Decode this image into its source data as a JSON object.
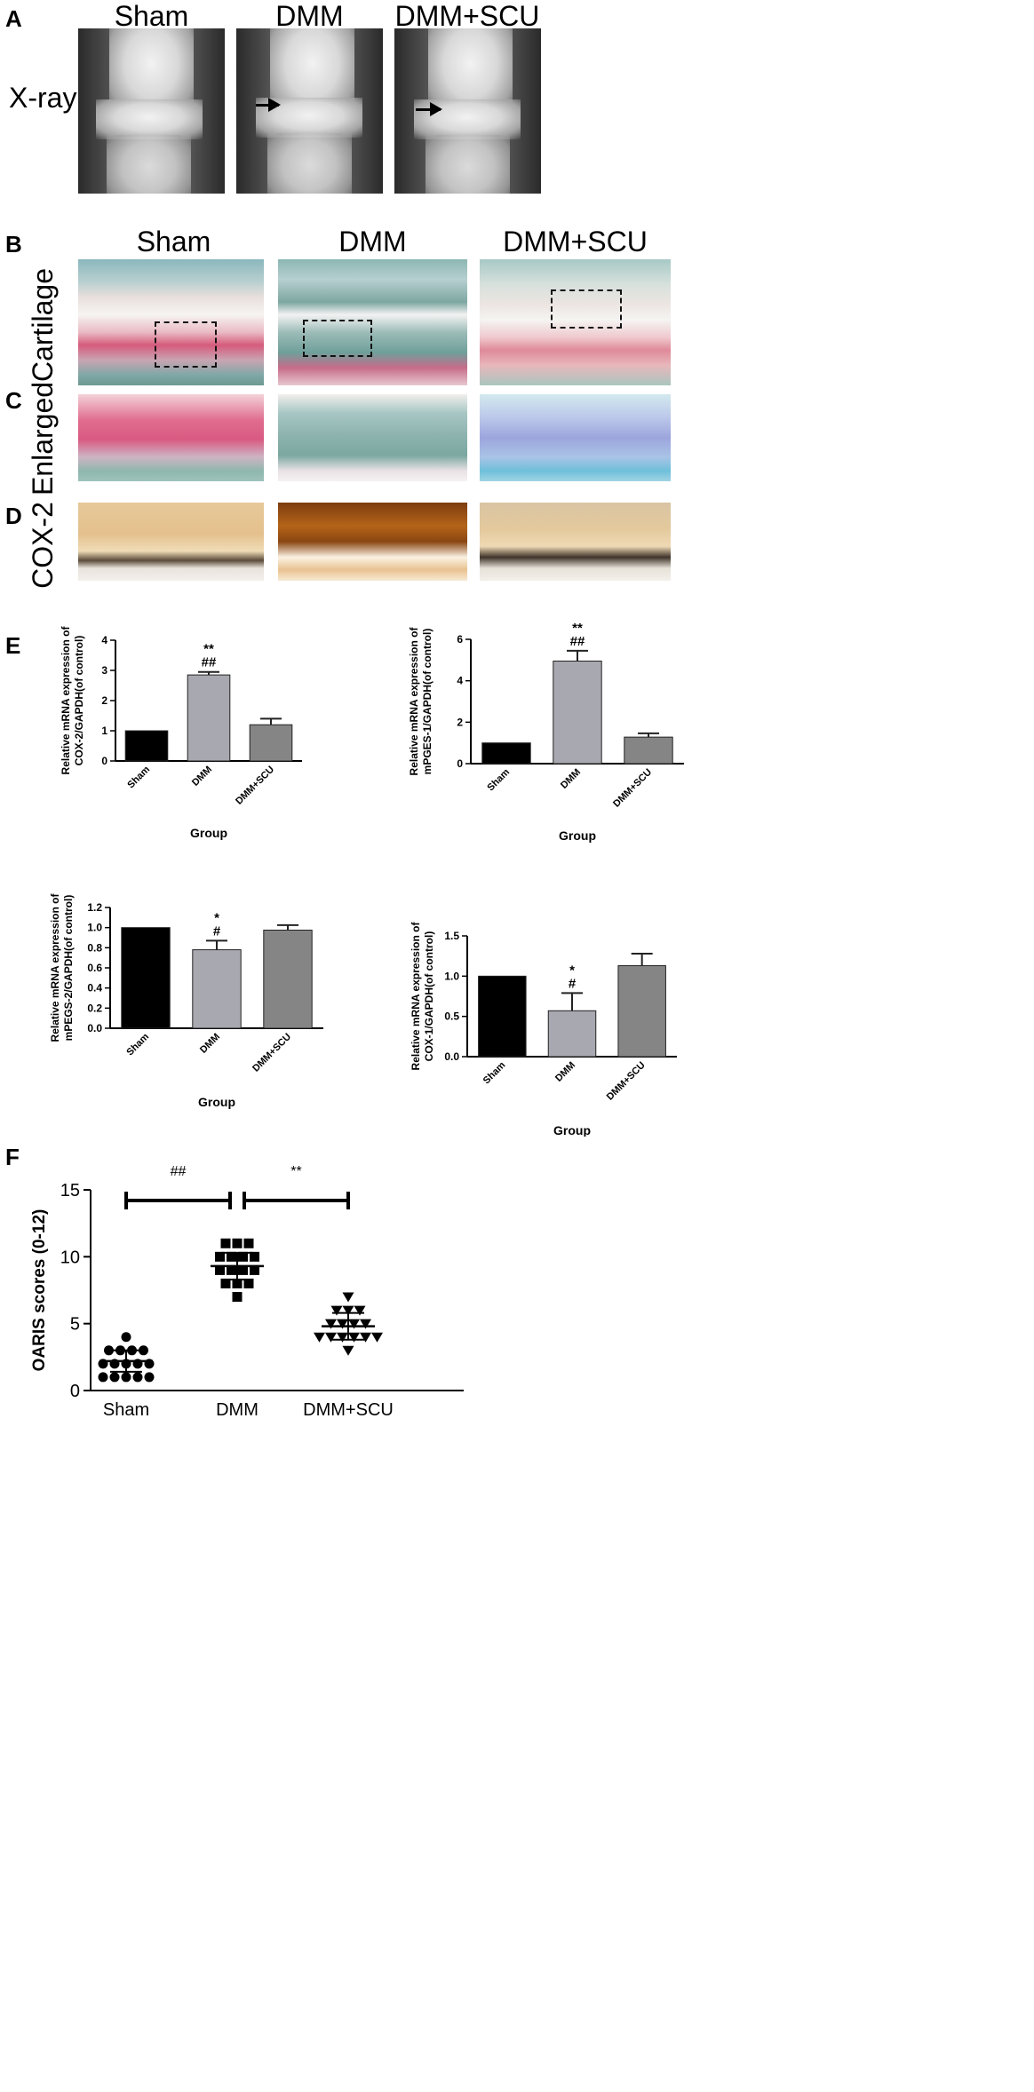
{
  "panels": {
    "A": {
      "letter": "A",
      "columns": [
        "Sham",
        "DMM",
        "DMM+SCU"
      ],
      "row_label": "X-ray"
    },
    "B": {
      "letter": "B",
      "columns": [
        "Sham",
        "DMM",
        "DMM+SCU"
      ],
      "row_label": "Cartilage"
    },
    "C": {
      "letter": "C",
      "row_label": "Enlarged"
    },
    "D": {
      "letter": "D",
      "row_label": "COX-2"
    },
    "E": {
      "letter": "E"
    },
    "F": {
      "letter": "F"
    }
  },
  "chart_data": [
    {
      "type": "bar",
      "categories": [
        "Sham",
        "DMM",
        "DMM+SCU"
      ],
      "values": [
        1.0,
        2.85,
        1.2
      ],
      "errors": [
        0,
        0.1,
        0.2
      ],
      "ylabel": "Relative mRNA expression of COX-2/GAPDH(of control)",
      "ylabel_lines": [
        "Relative mRNA expression of",
        "COX-2/GAPDH(of control)"
      ],
      "xlabel": "Group",
      "ylim": [
        0,
        4
      ],
      "yticks": [
        "0",
        "1",
        "2",
        "3",
        "4"
      ],
      "bar_colors": [
        "#000000",
        "#a8a8b0",
        "#858585"
      ],
      "annotations": [
        {
          "category": "DMM",
          "lines": [
            "**",
            "##"
          ]
        }
      ]
    },
    {
      "type": "bar",
      "categories": [
        "Sham",
        "DMM",
        "DMM+SCU"
      ],
      "values": [
        1.0,
        4.95,
        1.28
      ],
      "errors": [
        0,
        0.5,
        0.18
      ],
      "ylabel": "Relative mRNA expression of mPGES-1/GAPDH(of control)",
      "ylabel_lines": [
        "Relative mRNA expression of",
        "mPGES-1/GAPDH(of control)"
      ],
      "xlabel": "Group",
      "ylim": [
        0,
        6
      ],
      "yticks": [
        "0",
        "2",
        "4",
        "6"
      ],
      "bar_colors": [
        "#000000",
        "#a8a8b0",
        "#858585"
      ],
      "annotations": [
        {
          "category": "DMM",
          "lines": [
            "**",
            "##"
          ]
        }
      ]
    },
    {
      "type": "bar",
      "categories": [
        "Sham",
        "DMM",
        "DMM+SCU"
      ],
      "values": [
        1.0,
        0.78,
        0.975
      ],
      "errors": [
        0,
        0.09,
        0.05
      ],
      "ylabel": "Relative mRNA expression of mPEGS-2/GAPDH(of control)",
      "ylabel_lines": [
        "Relative mRNA expression of",
        "mPEGS-2/GAPDH(of control)"
      ],
      "xlabel": "Group",
      "ylim": [
        0,
        1.2
      ],
      "yticks": [
        "0.0",
        "0.2",
        "0.4",
        "0.6",
        "0.8",
        "1.0",
        "1.2"
      ],
      "bar_colors": [
        "#000000",
        "#a8a8b0",
        "#858585"
      ],
      "annotations": [
        {
          "category": "DMM",
          "lines": [
            "*",
            "#"
          ]
        }
      ]
    },
    {
      "type": "bar",
      "categories": [
        "Sham",
        "DMM",
        "DMM+SCU"
      ],
      "values": [
        1.0,
        0.57,
        1.13
      ],
      "errors": [
        0,
        0.22,
        0.15
      ],
      "ylabel": "Relative mRNA expression of COX-1/GAPDH(of control)",
      "ylabel_lines": [
        "Relative mRNA expression of",
        "COX-1/GAPDH(of control)"
      ],
      "xlabel": "Group",
      "ylim": [
        0,
        1.5
      ],
      "yticks": [
        "0.0",
        "0.5",
        "1.0",
        "1.5"
      ],
      "bar_colors": [
        "#000000",
        "#a8a8b0",
        "#858585"
      ],
      "annotations": [
        {
          "category": "DMM",
          "lines": [
            "*",
            "#"
          ]
        }
      ]
    },
    {
      "type": "scatter",
      "categories": [
        "Sham",
        "DMM",
        "DMM+SCU"
      ],
      "ylabel": "OARIS scores (0-12)",
      "ylim": [
        0,
        15
      ],
      "yticks": [
        "0",
        "5",
        "10",
        "15"
      ],
      "series": [
        {
          "category": "Sham",
          "marker": "circle",
          "mean": 2.2,
          "sd": 0.8,
          "values": [
            4,
            3,
            3,
            3,
            3,
            2,
            2,
            2,
            2,
            2,
            1,
            1,
            1,
            1,
            1
          ]
        },
        {
          "category": "DMM",
          "marker": "square",
          "mean": 9.3,
          "sd": 1.0,
          "values": [
            11,
            11,
            11,
            10,
            10,
            10,
            10,
            9,
            9,
            9,
            9,
            8,
            8,
            8,
            7
          ]
        },
        {
          "category": "DMM+SCU",
          "marker": "triangle-down",
          "mean": 4.8,
          "sd": 1.0,
          "values": [
            7,
            6,
            6,
            6,
            5,
            5,
            5,
            5,
            4,
            4,
            4,
            4,
            4,
            4,
            3
          ]
        }
      ],
      "comparisons": [
        {
          "from": "Sham",
          "to": "DMM",
          "label": "##"
        },
        {
          "from": "DMM",
          "to": "DMM+SCU",
          "label": "**"
        }
      ]
    }
  ]
}
